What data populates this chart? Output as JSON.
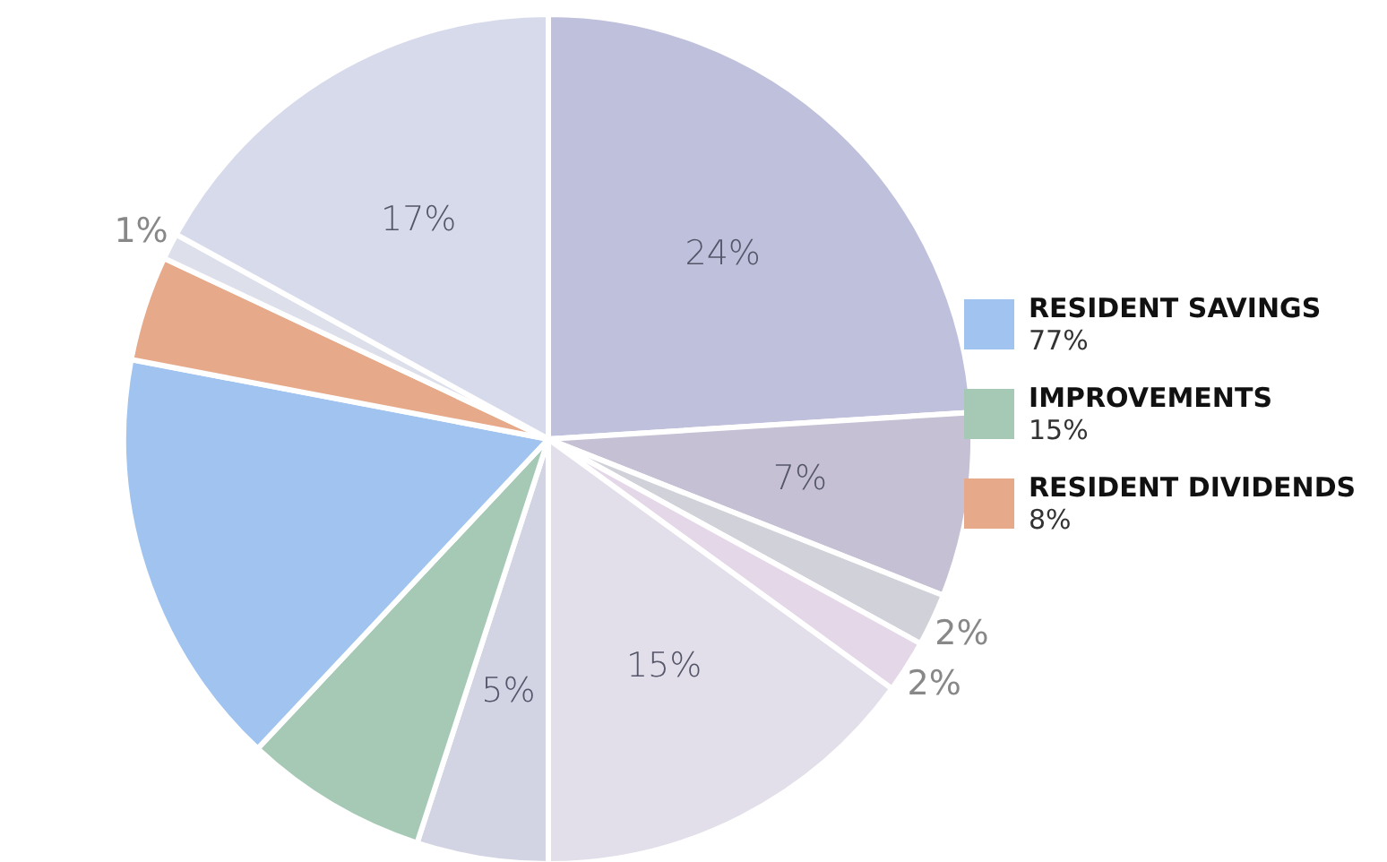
{
  "chart_data": {
    "type": "pie",
    "categories": [
      null,
      null,
      null,
      null,
      null,
      null,
      "IMPROVEMENTS",
      "RESIDENT SAVINGS",
      "RESIDENT DIVIDENDS",
      null,
      null
    ],
    "values": [
      24,
      7,
      2,
      2,
      15,
      5,
      7,
      16,
      4,
      1,
      17
    ],
    "value_labels": [
      "24%",
      "7%",
      "2%",
      "2%",
      "15%",
      "5%",
      null,
      null,
      null,
      "1%",
      "17%"
    ],
    "colors": [
      "#bfc0dc",
      "#c5c0d4",
      "#d0d1d9",
      "#e4d7e7",
      "#e2dfea",
      "#d2d3e3",
      "#a5c9b5",
      "#a0c4ef",
      "#e6a989",
      "#dde0ea",
      "#d7daea"
    ],
    "legend": "right",
    "annotations": [
      "15%",
      "77%",
      "8%"
    ]
  }
}
